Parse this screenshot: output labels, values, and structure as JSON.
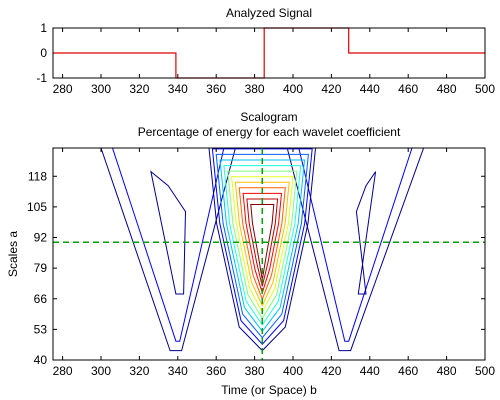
{
  "window": {
    "background": "#ffffff"
  },
  "chart_data": [
    {
      "type": "line",
      "title": "Analyzed Signal",
      "xlabel": "",
      "ylabel": "",
      "xlim": [
        275,
        500
      ],
      "ylim": [
        -1,
        1
      ],
      "xticks": [
        280,
        300,
        320,
        340,
        360,
        380,
        400,
        420,
        440,
        460,
        480,
        500
      ],
      "yticks": [
        -1,
        0,
        1
      ],
      "grid": false,
      "series": [
        {
          "color": "#e00000",
          "x": [
            275,
            339,
            339,
            385,
            385,
            429,
            429,
            500
          ],
          "y": [
            0,
            0,
            -1,
            -1,
            1,
            1,
            0,
            0
          ]
        }
      ]
    },
    {
      "type": "contour",
      "title": "Scalogram",
      "subtitle": "Percentage of energy for each wavelet coefficient",
      "xlabel": "Time (or Space) b",
      "ylabel": "Scales a",
      "xlim": [
        275,
        500
      ],
      "ylim": [
        40,
        130
      ],
      "xticks": [
        280,
        300,
        320,
        340,
        360,
        380,
        400,
        420,
        440,
        460,
        480,
        500
      ],
      "yticks": [
        40,
        53,
        66,
        79,
        92,
        105,
        118
      ],
      "grid": false,
      "crosshair": {
        "x": 384,
        "y": 90,
        "color": "#00a000",
        "style": "dashed"
      },
      "levels": 12,
      "colors": [
        "#00008f",
        "#0000ff",
        "#0060ff",
        "#00bfff",
        "#20ffdf",
        "#7fff7f",
        "#dfff20",
        "#ffbf00",
        "#ff6000",
        "#ff0000",
        "#bf0000",
        "#800000"
      ],
      "energy_peak": {
        "x": 384,
        "y": 88
      }
    }
  ]
}
